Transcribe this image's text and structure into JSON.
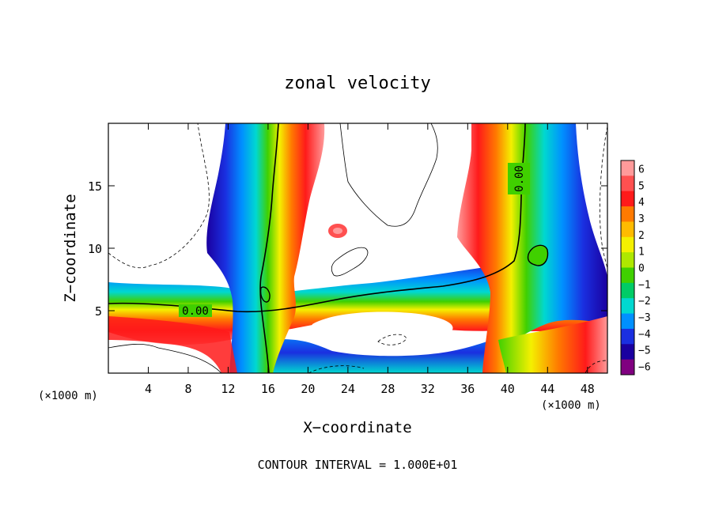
{
  "chart_data": {
    "type": "heatmap",
    "title": "zonal velocity",
    "xlabel": "X−coordinate",
    "ylabel": "Z−coordinate",
    "x_unit": "(×1000 m)",
    "x_unit_right": "(×1000 m)",
    "xlim": [
      0,
      50
    ],
    "ylim": [
      0,
      20
    ],
    "xticks": [
      4,
      8,
      12,
      16,
      20,
      24,
      28,
      32,
      36,
      40,
      44,
      48
    ],
    "yticks": [
      5,
      10,
      15
    ],
    "footer": "CONTOUR INTERVAL = 1.000E+01",
    "contour_labels": [
      {
        "text": "0.00",
        "x": 8.5,
        "z": 5.1
      },
      {
        "text": "0.00",
        "x": 41.5,
        "z": 15.5
      }
    ],
    "colorbar": {
      "levels": [
        6,
        5,
        4,
        3,
        2,
        1,
        0,
        -1,
        -2,
        -3,
        -4,
        -5,
        -6
      ],
      "level_labels": [
        "6",
        "5",
        "4",
        "3",
        "2",
        "1",
        "0",
        "−1",
        "−2",
        "−3",
        "−4",
        "−5",
        "−6"
      ],
      "colors": [
        "#ff9a9a",
        "#ff5050",
        "#ff1a1a",
        "#ff7a00",
        "#ffbb00",
        "#f4f000",
        "#aee800",
        "#40d000",
        "#00cc66",
        "#00d8d0",
        "#0090ff",
        "#1a2fe0",
        "#1a00a0",
        "#800080"
      ]
    },
    "features": [
      {
        "name": "left-vertical-band",
        "x_range": [
          11,
          20
        ],
        "z_range": [
          0,
          20
        ]
      },
      {
        "name": "right-vertical-band",
        "x_range": [
          34,
          47
        ],
        "z_range": [
          0,
          20
        ]
      },
      {
        "name": "lower-horizontal-band",
        "x_range": [
          0,
          50
        ],
        "z_range": [
          2,
          8
        ]
      }
    ]
  }
}
